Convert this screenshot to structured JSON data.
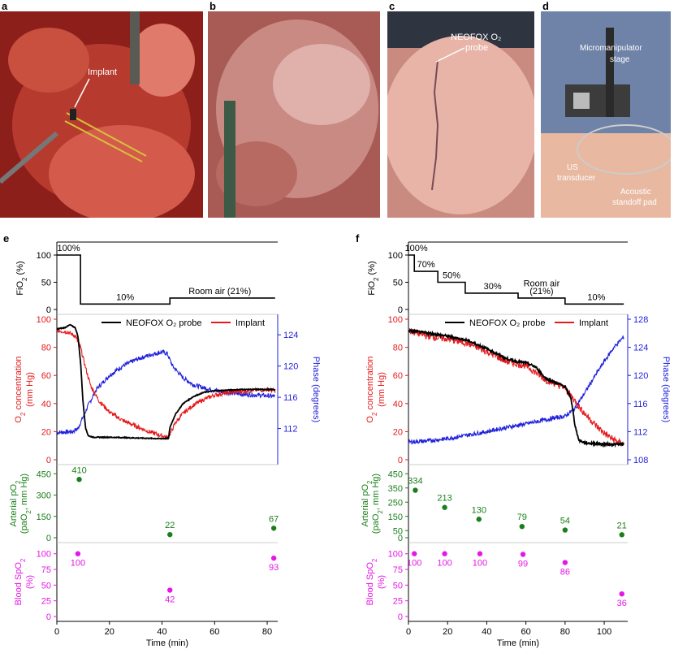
{
  "panels": {
    "a": {
      "letter": "a",
      "label": "Implant"
    },
    "b": {
      "letter": "b"
    },
    "c": {
      "letter": "c",
      "label_line1": "NEOFOX O₂",
      "label_line2": "probe"
    },
    "d": {
      "letter": "d",
      "label_stage_1": "Micromanipulator",
      "label_stage_2": "stage",
      "label_us_1": "US",
      "label_us_2": "transducer",
      "label_pad_1": "Acoustic",
      "label_pad_2": "standoff pad"
    }
  },
  "colors": {
    "black": "#000000",
    "red": "#e41a1c",
    "blue": "#1f1fdc",
    "green": "#1a7f1a",
    "magenta": "#e617e6"
  },
  "chart_data": [
    {
      "id": "e",
      "letter": "e",
      "type": "line",
      "xlabel": "Time (min)",
      "xlim": [
        0,
        84
      ],
      "xticks": [
        0,
        20,
        40,
        60,
        80
      ],
      "fio2": {
        "ylabel": "FiO2 (%)",
        "ylim": [
          0,
          100
        ],
        "yticks": [
          0,
          50,
          100
        ],
        "steps": [
          [
            0,
            100
          ],
          [
            9,
            100
          ],
          [
            9,
            10
          ],
          [
            43,
            10
          ],
          [
            43,
            21
          ],
          [
            83,
            21
          ]
        ],
        "labels": [
          {
            "text": "100%",
            "x": 4.5,
            "y": 100
          },
          {
            "text": "10%",
            "x": 26,
            "y": 10
          },
          {
            "text": "Room air (21%)",
            "x": 62,
            "y": 21
          }
        ]
      },
      "o2": {
        "ylabel": "O2 concentration (mm Hg)",
        "ylim": [
          0,
          100
        ],
        "yticks": [
          0,
          20,
          40,
          60,
          80,
          100
        ],
        "y2label": "Phase (degrees)",
        "y2lim": [
          108,
          126
        ],
        "y2ticks": [
          112,
          116,
          120,
          124
        ],
        "legend": [
          "NEOFOX O₂ probe",
          "Implant"
        ],
        "series": [
          {
            "name": "NEOFOX O₂ probe",
            "color": "black",
            "axis": "left",
            "noise": 0.3,
            "points": [
              [
                0,
                93
              ],
              [
                3,
                94
              ],
              [
                5,
                96
              ],
              [
                7,
                94
              ],
              [
                8,
                88
              ],
              [
                9,
                70
              ],
              [
                10,
                40
              ],
              [
                11,
                22
              ],
              [
                12,
                17
              ],
              [
                14,
                16
              ],
              [
                20,
                16
              ],
              [
                30,
                15.5
              ],
              [
                40,
                15
              ],
              [
                42.5,
                15.2
              ],
              [
                43,
                23
              ],
              [
                45,
                32
              ],
              [
                48,
                40
              ],
              [
                52,
                45
              ],
              [
                56,
                48
              ],
              [
                60,
                49
              ],
              [
                70,
                50
              ],
              [
                80,
                50
              ],
              [
                83,
                50
              ]
            ]
          },
          {
            "name": "Implant",
            "color": "red",
            "axis": "left",
            "noise": 1.5,
            "points": [
              [
                0,
                92
              ],
              [
                4,
                91
              ],
              [
                7,
                88
              ],
              [
                9,
                80
              ],
              [
                11,
                65
              ],
              [
                13,
                52
              ],
              [
                16,
                42
              ],
              [
                20,
                34
              ],
              [
                25,
                28
              ],
              [
                30,
                24
              ],
              [
                35,
                20
              ],
              [
                40,
                17
              ],
              [
                42,
                16
              ],
              [
                43,
                18
              ],
              [
                45,
                26
              ],
              [
                48,
                33
              ],
              [
                52,
                39
              ],
              [
                56,
                43
              ],
              [
                60,
                46
              ],
              [
                66,
                48
              ],
              [
                72,
                49
              ],
              [
                80,
                50
              ],
              [
                83,
                49
              ]
            ]
          },
          {
            "name": "Phase",
            "color": "blue",
            "axis": "right",
            "noise": 0.28,
            "points": [
              [
                0,
                111.5
              ],
              [
                6,
                111.6
              ],
              [
                8,
                112
              ],
              [
                10,
                113.5
              ],
              [
                12,
                115
              ],
              [
                15,
                117
              ],
              [
                20,
                118.8
              ],
              [
                25,
                120
              ],
              [
                30,
                120.8
              ],
              [
                35,
                121.4
              ],
              [
                40,
                121.8
              ],
              [
                42,
                121.6
              ],
              [
                44,
                120
              ],
              [
                48,
                118.5
              ],
              [
                52,
                117.6
              ],
              [
                56,
                117.2
              ],
              [
                60,
                116.9
              ],
              [
                65,
                116.6
              ],
              [
                70,
                116.4
              ],
              [
                75,
                116.3
              ],
              [
                80,
                116.2
              ],
              [
                83,
                116.1
              ]
            ]
          }
        ]
      },
      "pao2": {
        "ylabel": "Arterial pO2 (paO2, mm Hg)",
        "ylim": [
          0,
          480
        ],
        "yticks": [
          0,
          150,
          300,
          450
        ],
        "points": [
          {
            "x": 8.5,
            "y": 410,
            "label": "410"
          },
          {
            "x": 43,
            "y": 22,
            "label": "22"
          },
          {
            "x": 82.5,
            "y": 67,
            "label": "67"
          }
        ]
      },
      "spo2": {
        "ylabel": "Blood SpO2 (%)",
        "ylim": [
          0,
          110
        ],
        "yticks": [
          0,
          25,
          50,
          75,
          100
        ],
        "points": [
          {
            "x": 8,
            "y": 100,
            "label": "100"
          },
          {
            "x": 43,
            "y": 42,
            "label": "42"
          },
          {
            "x": 82.5,
            "y": 93,
            "label": "93"
          }
        ]
      }
    },
    {
      "id": "f",
      "letter": "f",
      "type": "line",
      "xlabel": "Time (min)",
      "xlim": [
        0,
        112
      ],
      "xticks": [
        0,
        20,
        40,
        60,
        80,
        100
      ],
      "fio2": {
        "ylabel": "FiO2 (%)",
        "ylim": [
          0,
          100
        ],
        "yticks": [
          0,
          50,
          100
        ],
        "steps": [
          [
            0,
            100
          ],
          [
            3,
            100
          ],
          [
            3,
            70
          ],
          [
            15,
            70
          ],
          [
            15,
            50
          ],
          [
            29,
            50
          ],
          [
            29,
            30
          ],
          [
            56,
            30
          ],
          [
            56,
            21
          ],
          [
            80,
            21
          ],
          [
            80,
            10
          ],
          [
            110,
            10
          ]
        ],
        "labels": [
          {
            "text": "100%",
            "x": 4,
            "y": 100
          },
          {
            "text": "70%",
            "x": 9,
            "y": 70
          },
          {
            "text": "50%",
            "x": 22,
            "y": 50
          },
          {
            "text": "30%",
            "x": 43,
            "y": 30
          },
          {
            "text": "Room air",
            "x": 68,
            "y": 35
          },
          {
            "text": "(21%)",
            "x": 68,
            "y": 21
          },
          {
            "text": "10%",
            "x": 96,
            "y": 10
          }
        ]
      },
      "o2": {
        "ylabel": "O2 concentration (mm Hg)",
        "ylim": [
          0,
          100
        ],
        "yticks": [
          0,
          20,
          40,
          60,
          80,
          100
        ],
        "y2label": "Phase (degrees)",
        "y2lim": [
          108,
          128
        ],
        "y2ticks": [
          108,
          112,
          116,
          120,
          124,
          128
        ],
        "legend": [
          "NEOFOX O₂ probe",
          "Implant"
        ],
        "series": [
          {
            "name": "NEOFOX O₂ probe",
            "color": "black",
            "axis": "left",
            "noise": 0.8,
            "points": [
              [
                0,
                92
              ],
              [
                10,
                90
              ],
              [
                20,
                88
              ],
              [
                30,
                85
              ],
              [
                40,
                79
              ],
              [
                50,
                72
              ],
              [
                55,
                70
              ],
              [
                60,
                69
              ],
              [
                65,
                66
              ],
              [
                70,
                58
              ],
              [
                75,
                55
              ],
              [
                80,
                52
              ],
              [
                83,
                44
              ],
              [
                85,
                25
              ],
              [
                87,
                14
              ],
              [
                90,
                12
              ],
              [
                100,
                11
              ],
              [
                110,
                11
              ]
            ]
          },
          {
            "name": "Implant",
            "color": "red",
            "axis": "left",
            "noise": 2.5,
            "points": [
              [
                0,
                92
              ],
              [
                10,
                88
              ],
              [
                20,
                86
              ],
              [
                30,
                83
              ],
              [
                40,
                77
              ],
              [
                50,
                70
              ],
              [
                60,
                67
              ],
              [
                70,
                57
              ],
              [
                80,
                51
              ],
              [
                84,
                44
              ],
              [
                88,
                36
              ],
              [
                92,
                30
              ],
              [
                96,
                24
              ],
              [
                100,
                19
              ],
              [
                104,
                15
              ],
              [
                108,
                12
              ],
              [
                110,
                11
              ]
            ]
          },
          {
            "name": "Phase",
            "color": "blue",
            "axis": "right",
            "noise": 0.3,
            "points": [
              [
                0,
                110.5
              ],
              [
                10,
                110.7
              ],
              [
                20,
                111
              ],
              [
                30,
                111.5
              ],
              [
                40,
                112
              ],
              [
                50,
                112.6
              ],
              [
                60,
                113.1
              ],
              [
                70,
                113.7
              ],
              [
                80,
                114.2
              ],
              [
                85,
                115.3
              ],
              [
                90,
                117.5
              ],
              [
                95,
                119.8
              ],
              [
                100,
                122
              ],
              [
                105,
                124
              ],
              [
                110,
                125.5
              ]
            ]
          }
        ]
      },
      "pao2": {
        "ylabel": "Arterial pO2 (paO2, mm Hg)",
        "ylim": [
          0,
          480
        ],
        "yticks": [
          0,
          50,
          150,
          250,
          350,
          450
        ],
        "points": [
          {
            "x": 3.5,
            "y": 334,
            "label": "334"
          },
          {
            "x": 18.5,
            "y": 213,
            "label": "213"
          },
          {
            "x": 36,
            "y": 130,
            "label": "130"
          },
          {
            "x": 58,
            "y": 79,
            "label": "79"
          },
          {
            "x": 80,
            "y": 54,
            "label": "54"
          },
          {
            "x": 109,
            "y": 21,
            "label": "21"
          }
        ]
      },
      "spo2": {
        "ylabel": "Blood SpO2 (%)",
        "ylim": [
          0,
          110
        ],
        "yticks": [
          0,
          25,
          50,
          75,
          100
        ],
        "points": [
          {
            "x": 3,
            "y": 100,
            "label": "100"
          },
          {
            "x": 18.5,
            "y": 100,
            "label": "100"
          },
          {
            "x": 36.5,
            "y": 100,
            "label": "100"
          },
          {
            "x": 58.5,
            "y": 99,
            "label": "99"
          },
          {
            "x": 80,
            "y": 86,
            "label": "86"
          },
          {
            "x": 109,
            "y": 36,
            "label": "36"
          }
        ]
      }
    }
  ]
}
